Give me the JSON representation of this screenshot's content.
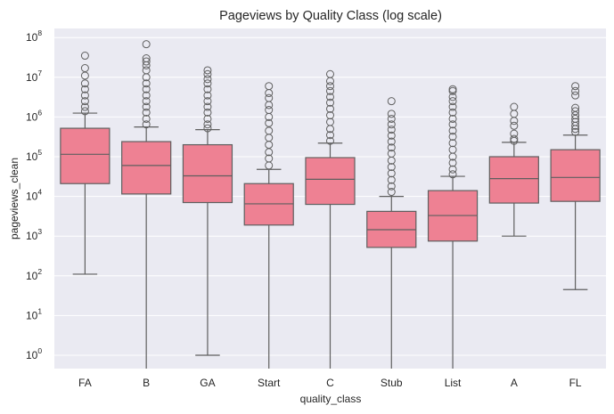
{
  "chart_data": {
    "type": "boxplot",
    "title": "Pageviews by Quality Class (log scale)",
    "xlabel": "quality_class",
    "ylabel": "pageviews_clean",
    "y_scale": "log",
    "ylim": [
      0.4,
      130000000
    ],
    "y_ticks": [
      1,
      10,
      100,
      1000,
      10000,
      100000,
      1000000,
      10000000,
      100000000
    ],
    "y_tick_exponents": [
      "0",
      "1",
      "2",
      "3",
      "4",
      "5",
      "6",
      "7",
      "8"
    ],
    "grid": true,
    "box_color": "#ee8193",
    "line_color": "#5f5f5f",
    "background_color": "#eaeaf2",
    "categories": [
      "FA",
      "B",
      "GA",
      "Start",
      "C",
      "Stub",
      "List",
      "A",
      "FL"
    ],
    "boxes": [
      {
        "category": "FA",
        "whisker_low": 110,
        "q1": 21000,
        "median": 115000,
        "q3": 520000,
        "whisker_high": 1250000,
        "outliers": [
          35000000,
          17000000,
          11000000,
          7000000,
          5000000,
          3500000,
          2500000,
          1800000,
          1400000
        ]
      },
      {
        "category": "B",
        "whisker_low": 0.4,
        "q1": 11500,
        "median": 60000,
        "q3": 240000,
        "whisker_high": 560000,
        "outliers": [
          68000000,
          30000000,
          25000000,
          20000000,
          15000000,
          10000000,
          7000000,
          5000000,
          3500000,
          2500000,
          1800000,
          1300000,
          900000,
          650000
        ]
      },
      {
        "category": "GA",
        "whisker_low": 1,
        "q1": 7000,
        "median": 33000,
        "q3": 200000,
        "whisker_high": 480000,
        "outliers": [
          15000000,
          12000000,
          9000000,
          7000000,
          5000000,
          3500000,
          2500000,
          1800000,
          1300000,
          900000,
          650000,
          520000
        ]
      },
      {
        "category": "Start",
        "whisker_low": 0.4,
        "q1": 1900,
        "median": 6500,
        "q3": 21000,
        "whisker_high": 48000,
        "outliers": [
          6000000,
          4000000,
          3000000,
          2000000,
          1500000,
          1000000,
          700000,
          450000,
          300000,
          200000,
          130000,
          90000,
          60000
        ]
      },
      {
        "category": "C",
        "whisker_low": 0.4,
        "q1": 6300,
        "median": 27000,
        "q3": 95000,
        "whisker_high": 220000,
        "outliers": [
          12000000,
          8000000,
          6000000,
          4500000,
          3200000,
          2300000,
          1600000,
          1100000,
          750000,
          500000,
          350000,
          250000
        ]
      },
      {
        "category": "Stub",
        "whisker_low": 0.4,
        "q1": 520,
        "median": 1450,
        "q3": 4200,
        "whisker_high": 10000,
        "outliers": [
          2500000,
          1200000,
          900000,
          650000,
          480000,
          340000,
          240000,
          170000,
          120000,
          80000,
          55000,
          38000,
          26000,
          18000,
          13000
        ]
      },
      {
        "category": "List",
        "whisker_low": 0.4,
        "q1": 750,
        "median": 3300,
        "q3": 14000,
        "whisker_high": 32000,
        "outliers": [
          5000000,
          4500000,
          3200000,
          2500000,
          1800000,
          1300000,
          900000,
          650000,
          450000,
          320000,
          220000,
          150000,
          100000,
          70000,
          48000,
          36000
        ]
      },
      {
        "category": "A",
        "whisker_low": 1000,
        "q1": 6800,
        "median": 28000,
        "q3": 100000,
        "whisker_high": 230000,
        "outliers": [
          1800000,
          1200000,
          800000,
          600000,
          380000,
          280000,
          250000
        ]
      },
      {
        "category": "FL",
        "whisker_low": 45,
        "q1": 7500,
        "median": 30000,
        "q3": 150000,
        "whisker_high": 350000,
        "outliers": [
          6000000,
          4500000,
          3500000,
          1700000,
          1400000,
          1100000,
          900000,
          750000,
          600000,
          500000,
          420000
        ]
      }
    ]
  }
}
